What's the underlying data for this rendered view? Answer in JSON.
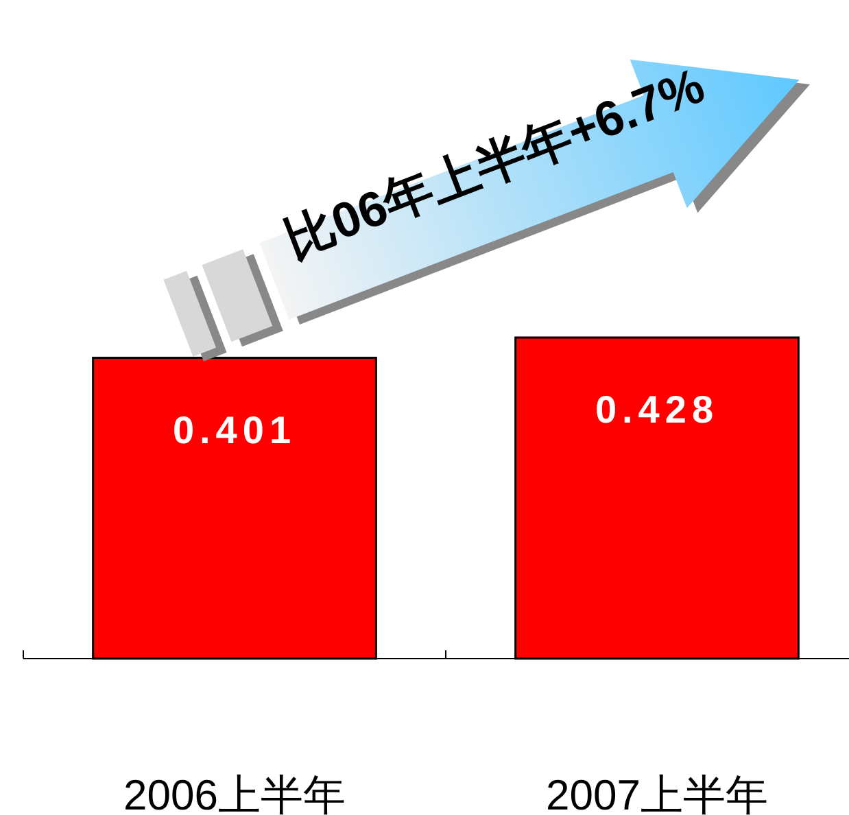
{
  "chart_data": {
    "type": "bar",
    "categories": [
      "2006上半年",
      "2007上半年"
    ],
    "values": [
      0.401,
      0.428
    ],
    "color": "#ff0000",
    "data_labels": true,
    "annotations": [
      "比06年上半年+6.7%"
    ]
  }
}
